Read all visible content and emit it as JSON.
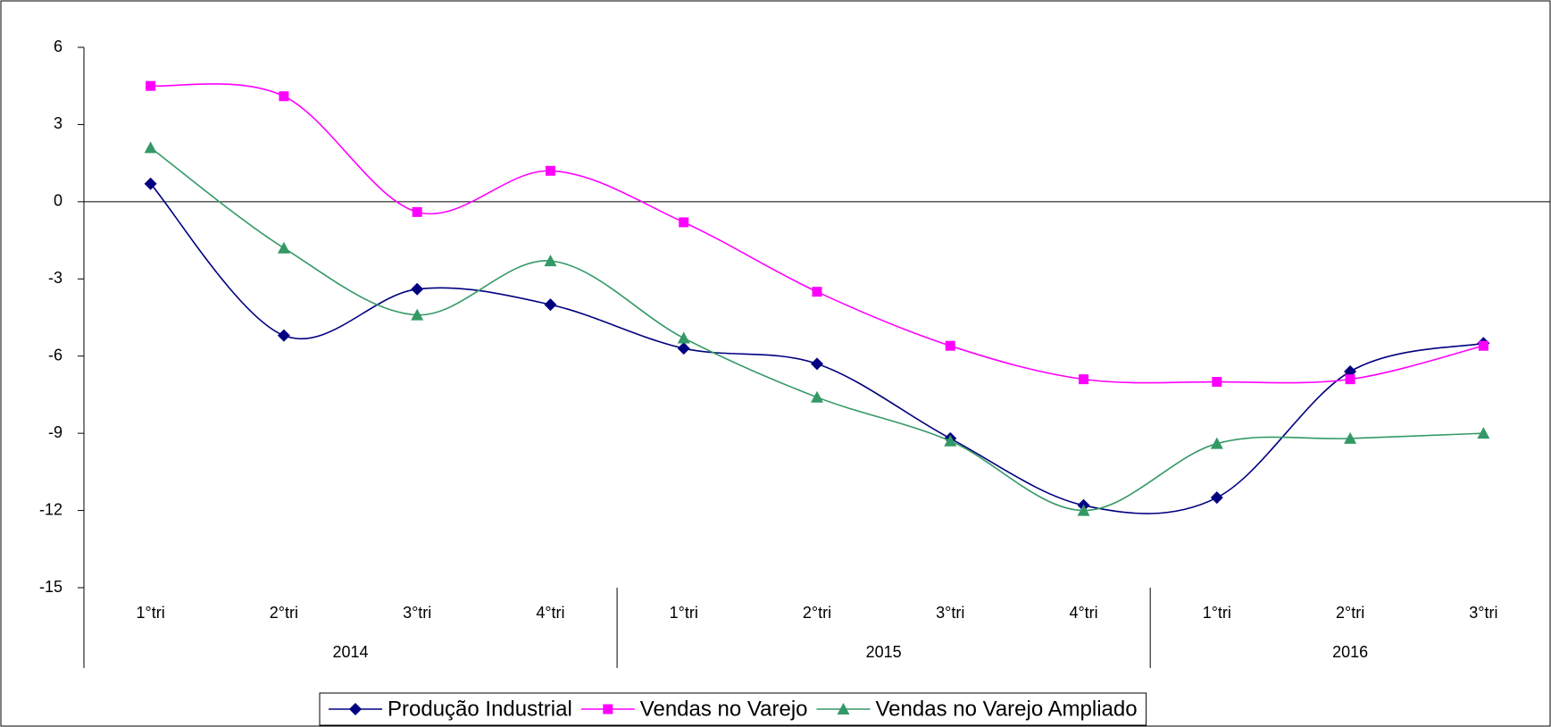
{
  "chart_data": {
    "type": "line",
    "categories": [
      "1°tri",
      "2°tri",
      "3°tri",
      "4°tri",
      "1°tri",
      "2°tri",
      "3°tri",
      "4°tri",
      "1°tri",
      "2°tri",
      "3°tri"
    ],
    "category_groups": [
      {
        "label": "2014",
        "size": 4
      },
      {
        "label": "2015",
        "size": 4
      },
      {
        "label": "2016",
        "size": 3
      }
    ],
    "series": [
      {
        "name": "Produção Industrial",
        "color": "#000080",
        "marker": "diamond",
        "values": [
          0.7,
          -5.2,
          -3.4,
          -4.0,
          -5.7,
          -6.3,
          -9.2,
          -11.8,
          -11.5,
          -6.6,
          -5.5
        ]
      },
      {
        "name": "Vendas no Varejo",
        "color": "#ff00ff",
        "marker": "square",
        "values": [
          4.5,
          4.1,
          -0.4,
          1.2,
          -0.8,
          -3.5,
          -5.6,
          -6.9,
          -7.0,
          -6.9,
          -5.6
        ]
      },
      {
        "name": "Vendas no Varejo Ampliado",
        "color": "#339966",
        "marker": "triangle",
        "values": [
          2.1,
          -1.8,
          -4.4,
          -2.3,
          -5.3,
          -7.6,
          -9.3,
          -12.0,
          -9.4,
          -9.2,
          -9.0
        ]
      }
    ],
    "ylim": [
      -15,
      6
    ],
    "yticks": [
      -15,
      -12,
      -9,
      -6,
      -3,
      0,
      3,
      6
    ],
    "smooth": true,
    "legend": "bottom"
  }
}
